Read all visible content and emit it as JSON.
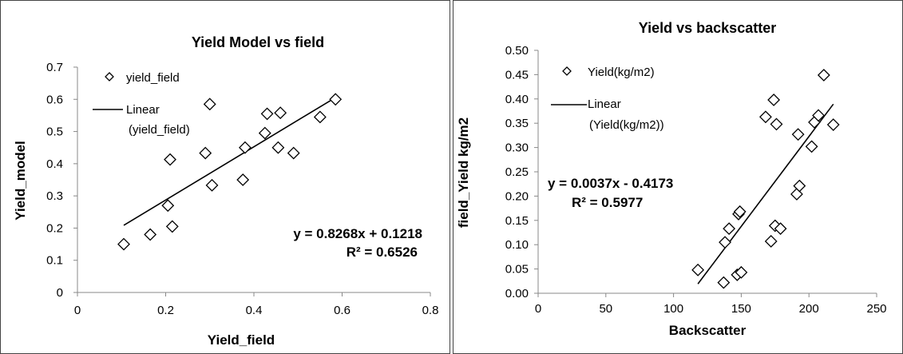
{
  "charts": [
    {
      "title": "Yield Model vs field",
      "xlabel": "Yield_field",
      "ylabel": "Yield_model",
      "legend": {
        "marker_label": "yield_field",
        "line_label_1": "Linear",
        "line_label_2": "(yield_field)"
      },
      "equation": "y = 0.8268x + 0.1218",
      "r2": "R² = 0.6526"
    },
    {
      "title": "Yield vs backscatter",
      "xlabel": "Backscatter",
      "ylabel": "field_Yield kg/m2",
      "legend": {
        "marker_label": "Yield(kg/m2)",
        "line_label_1": "Linear",
        "line_label_2": "(Yield(kg/m2))"
      },
      "equation": "y = 0.0037x - 0.4173",
      "r2": "R² = 0.5977"
    }
  ],
  "chart_data": [
    {
      "type": "scatter",
      "title": "Yield Model vs field",
      "xlabel": "Yield_field",
      "ylabel": "Yield_model",
      "xlim": [
        0,
        0.8
      ],
      "ylim": [
        0,
        0.7
      ],
      "xticks": [
        "0",
        "0.2",
        "0.4",
        "0.6",
        "0.8"
      ],
      "yticks": [
        "0",
        "0.1",
        "0.2",
        "0.3",
        "0.4",
        "0.5",
        "0.6",
        "0.7"
      ],
      "grid": false,
      "legend_position": "top-left",
      "series": [
        {
          "name": "yield_field",
          "marker": "diamond",
          "points": [
            [
              0.105,
              0.15
            ],
            [
              0.165,
              0.18
            ],
            [
              0.205,
              0.27
            ],
            [
              0.21,
              0.413
            ],
            [
              0.215,
              0.205
            ],
            [
              0.29,
              0.433
            ],
            [
              0.3,
              0.585
            ],
            [
              0.305,
              0.333
            ],
            [
              0.375,
              0.35
            ],
            [
              0.38,
              0.45
            ],
            [
              0.425,
              0.495
            ],
            [
              0.43,
              0.555
            ],
            [
              0.455,
              0.45
            ],
            [
              0.46,
              0.558
            ],
            [
              0.49,
              0.433
            ],
            [
              0.55,
              0.545
            ],
            [
              0.585,
              0.6
            ]
          ]
        }
      ],
      "trendline": {
        "name": "Linear (yield_field)",
        "slope": 0.8268,
        "intercept": 0.1218,
        "x_range": [
          0.105,
          0.585
        ]
      },
      "annotations": [
        "y = 0.8268x + 0.1218",
        "R² = 0.6526"
      ]
    },
    {
      "type": "scatter",
      "title": "Yield vs backscatter",
      "xlabel": "Backscatter",
      "ylabel": "field_Yield kg/m2",
      "xlim": [
        0,
        250
      ],
      "ylim": [
        0,
        0.5
      ],
      "xticks": [
        "0",
        "50",
        "100",
        "150",
        "200",
        "250"
      ],
      "yticks": [
        "0.00",
        "0.05",
        "0.10",
        "0.15",
        "0.20",
        "0.25",
        "0.30",
        "0.35",
        "0.40",
        "0.45",
        "0.50"
      ],
      "grid": false,
      "legend_position": "top-left",
      "series": [
        {
          "name": "Yield(kg/m2)",
          "marker": "diamond",
          "points": [
            [
              118,
              0.048
            ],
            [
              137,
              0.022
            ],
            [
              138,
              0.105
            ],
            [
              141,
              0.133
            ],
            [
              147,
              0.038
            ],
            [
              148,
              0.163
            ],
            [
              149,
              0.168
            ],
            [
              150,
              0.043
            ],
            [
              168,
              0.363
            ],
            [
              172,
              0.107
            ],
            [
              174,
              0.398
            ],
            [
              175,
              0.139
            ],
            [
              176,
              0.348
            ],
            [
              179,
              0.133
            ],
            [
              191,
              0.204
            ],
            [
              192,
              0.327
            ],
            [
              193,
              0.221
            ],
            [
              202,
              0.302
            ],
            [
              204,
              0.352
            ],
            [
              207,
              0.366
            ],
            [
              211,
              0.449
            ],
            [
              218,
              0.347
            ]
          ]
        }
      ],
      "trendline": {
        "name": "Linear (Yield(kg/m2))",
        "slope": 0.0037,
        "intercept": -0.4173,
        "x_range": [
          118,
          218
        ]
      },
      "annotations": [
        "y = 0.0037x - 0.4173",
        "R² = 0.5977"
      ]
    }
  ]
}
